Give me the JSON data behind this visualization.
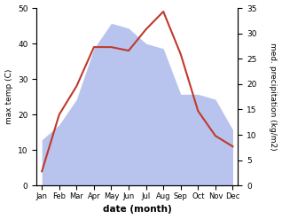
{
  "months": [
    "Jan",
    "Feb",
    "Mar",
    "Apr",
    "May",
    "Jun",
    "Jul",
    "Aug",
    "Sep",
    "Oct",
    "Nov",
    "Dec"
  ],
  "temp": [
    4,
    20,
    28,
    39,
    39,
    38,
    44,
    49,
    37,
    21,
    14,
    11
  ],
  "precip": [
    9,
    12,
    17,
    27,
    32,
    31,
    28,
    27,
    18,
    18,
    17,
    11
  ],
  "temp_color": "#c0392b",
  "precip_fill_color": "#b8c4ee",
  "precip_edge_color": "#9090cc",
  "temp_ylim": [
    0,
    50
  ],
  "precip_ylim": [
    0,
    35
  ],
  "temp_yticks": [
    0,
    10,
    20,
    30,
    40,
    50
  ],
  "precip_yticks": [
    0,
    5,
    10,
    15,
    20,
    25,
    30,
    35
  ],
  "xlabel": "date (month)",
  "ylabel_left": "max temp (C)",
  "ylabel_right": "med. precipitation (kg/m2)"
}
